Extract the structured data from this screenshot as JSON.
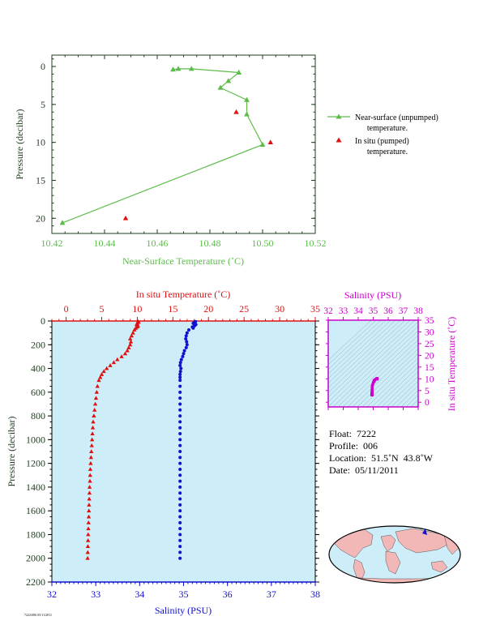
{
  "colors": {
    "near_surface": "#5dbb4a",
    "in_situ": "#e01010",
    "salinity": "#1010d0",
    "ts_accent": "#cc00cc",
    "axis_dark": "#1f3d1f",
    "panel_fill": "#cdeef8",
    "land": "#f2b8b8"
  },
  "info": {
    "float": "Float:  7222",
    "profile": "Profile:  006",
    "location": "Location:  51.5˚N  43.8˚W",
    "date": "Date:  05/11/2011"
  },
  "stamp": "7222/006 05/11/2011",
  "chart_data": [
    {
      "type": "line",
      "xlabel": "Near-Surface Temperature (˚C)",
      "ylabel": "Pressure (decibar)",
      "xlim": [
        10.42,
        10.52
      ],
      "ylim": [
        22,
        -1.5
      ],
      "xticks": [
        10.42,
        10.44,
        10.46,
        10.48,
        10.5,
        10.52
      ],
      "xtick_labels": [
        "10.42",
        "10.44",
        "10.46",
        "10.48",
        "10.50",
        "10.52"
      ],
      "yticks": [
        0,
        5,
        10,
        15,
        20
      ],
      "ytick_labels": [
        "0",
        "5",
        "10",
        "15",
        "20"
      ],
      "legend_position": "right",
      "series": [
        {
          "name": "Near-surface (unpumped) temperature.",
          "label_lines": [
            "Near-surface (unpumped)",
            "temperature."
          ],
          "x": [
            10.466,
            10.468,
            10.473,
            10.491,
            10.487,
            10.484,
            10.494,
            10.494,
            10.5,
            10.424
          ],
          "y": [
            0.4,
            0.3,
            0.3,
            0.8,
            1.9,
            2.8,
            4.4,
            6.3,
            10.3,
            20.6
          ]
        },
        {
          "name": "In situ (pumped) temperature.",
          "label_lines": [
            "In situ (pumped)",
            "temperature."
          ],
          "x": [
            10.49,
            10.503,
            10.448
          ],
          "y": [
            6.0,
            10.0,
            20.0
          ]
        }
      ]
    },
    {
      "type": "scatter",
      "ylabel": "Pressure (decibar)",
      "x_top_label": "In situ Temperature (˚C)",
      "x_bottom_label": "Salinity (PSU)",
      "temp_lim": [
        -2,
        35
      ],
      "sal_lim": [
        32,
        38
      ],
      "ylim": [
        2200,
        0
      ],
      "temp_ticks": [
        0,
        5,
        10,
        15,
        20,
        25,
        30,
        35
      ],
      "temp_tick_labels": [
        "0",
        "5",
        "10",
        "15",
        "20",
        "25",
        "30",
        "35"
      ],
      "sal_ticks": [
        32,
        33,
        34,
        35,
        36,
        37,
        38
      ],
      "sal_tick_labels": [
        "32",
        "33",
        "34",
        "35",
        "36",
        "37",
        "38"
      ],
      "yticks": [
        0,
        200,
        400,
        600,
        800,
        1000,
        1200,
        1400,
        1600,
        1800,
        2000,
        2200
      ],
      "ytick_labels": [
        "0",
        "200",
        "400",
        "600",
        "800",
        "1000",
        "1200",
        "1400",
        "1600",
        "1800",
        "2000",
        "2200"
      ],
      "pressure": [
        5,
        10,
        20,
        30,
        40,
        50,
        60,
        75,
        100,
        125,
        150,
        175,
        200,
        225,
        250,
        275,
        300,
        325,
        350,
        375,
        400,
        425,
        450,
        475,
        500,
        550,
        600,
        650,
        700,
        750,
        800,
        850,
        900,
        950,
        1000,
        1050,
        1100,
        1150,
        1200,
        1250,
        1300,
        1350,
        1400,
        1450,
        1500,
        1550,
        1600,
        1650,
        1700,
        1750,
        1800,
        1850,
        1900,
        1950,
        2000
      ],
      "temperature": [
        10.1,
        10.2,
        10.0,
        9.9,
        10.1,
        10.0,
        9.8,
        9.6,
        9.4,
        9.2,
        9.0,
        9.1,
        9.0,
        8.8,
        8.6,
        8.3,
        7.8,
        7.2,
        6.7,
        6.2,
        5.7,
        5.3,
        5.0,
        4.8,
        4.6,
        4.4,
        4.3,
        4.2,
        4.1,
        4.0,
        3.9,
        3.8,
        3.75,
        3.7,
        3.65,
        3.6,
        3.55,
        3.5,
        3.45,
        3.4,
        3.38,
        3.35,
        3.3,
        3.28,
        3.25,
        3.22,
        3.2,
        3.18,
        3.15,
        3.12,
        3.1,
        3.08,
        3.06,
        3.04,
        3.02
      ],
      "salinity": [
        35.27,
        35.25,
        35.22,
        35.28,
        35.25,
        35.2,
        35.22,
        35.12,
        35.08,
        35.06,
        35.05,
        35.07,
        35.08,
        35.06,
        35.02,
        35.0,
        34.98,
        34.95,
        34.93,
        34.92,
        34.94,
        34.93,
        34.92,
        34.92,
        34.92,
        34.92,
        34.92,
        34.92,
        34.92,
        34.92,
        34.92,
        34.92,
        34.92,
        34.92,
        34.92,
        34.92,
        34.92,
        34.92,
        34.92,
        34.92,
        34.92,
        34.92,
        34.92,
        34.92,
        34.92,
        34.92,
        34.92,
        34.92,
        34.92,
        34.92,
        34.92,
        34.92,
        34.92,
        34.92,
        34.92
      ]
    },
    {
      "type": "scatter",
      "xlabel": "Salinity (PSU)",
      "ylabel": "In situ Temperature (˚C)",
      "xlim": [
        32,
        38
      ],
      "ylim": [
        -2,
        35
      ],
      "xticks": [
        32,
        33,
        34,
        35,
        36,
        37,
        38
      ],
      "xtick_labels": [
        "32",
        "33",
        "34",
        "35",
        "36",
        "37",
        "38"
      ],
      "yticks": [
        0,
        5,
        10,
        15,
        20,
        25,
        30,
        35
      ],
      "ytick_labels": [
        "0",
        "5",
        "10",
        "15",
        "20",
        "25",
        "30",
        "35"
      ]
    }
  ]
}
